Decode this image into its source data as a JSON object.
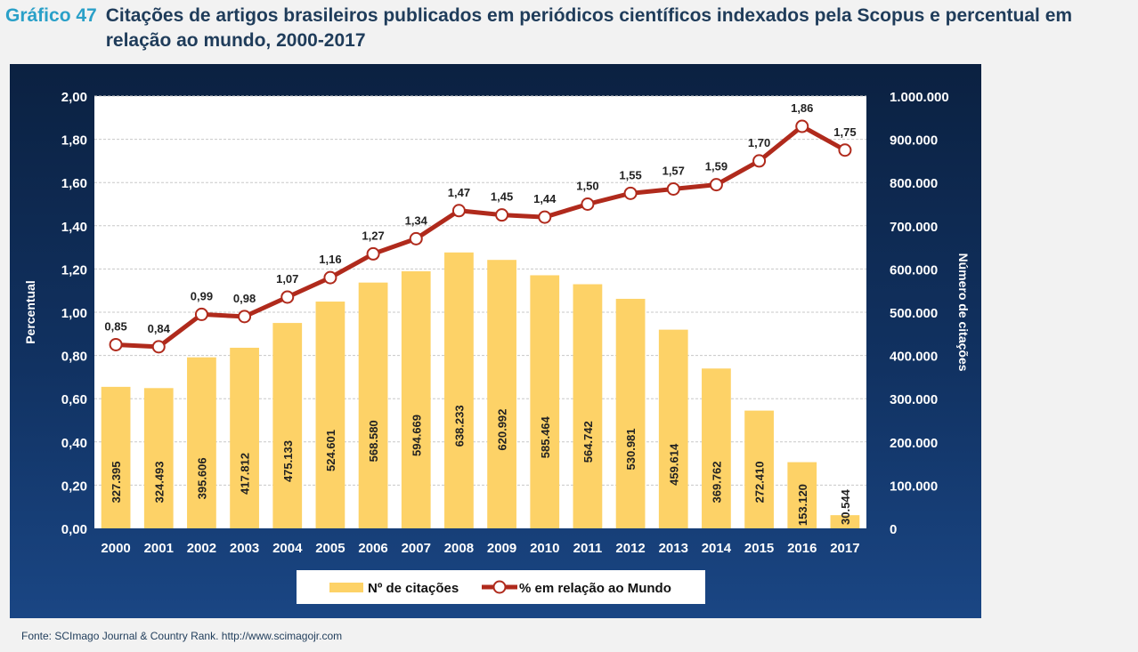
{
  "header": {
    "label": "Gráfico 47",
    "title": "Citações de artigos brasileiros publicados em periódicos científicos indexados pela Scopus e percentual em relação ao mundo, 2000-2017"
  },
  "source": "Fonte: SCImago Journal & Country Rank. http://www.scimagojr.com",
  "colors": {
    "bar": "#fdd267",
    "line": "#b02a1c",
    "panel": "#0f2c57",
    "plot_bg": "#ffffff"
  },
  "chart_data": {
    "type": "bar",
    "categories": [
      "2000",
      "2001",
      "2002",
      "2003",
      "2004",
      "2005",
      "2006",
      "2007",
      "2008",
      "2009",
      "2010",
      "2011",
      "2012",
      "2013",
      "2014",
      "2015",
      "2016",
      "2017"
    ],
    "series": [
      {
        "name": "Nº de citações",
        "type": "bar",
        "axis": "right",
        "values": [
          327395,
          324493,
          395606,
          417812,
          475133,
          524601,
          568580,
          594669,
          638233,
          620992,
          585464,
          564742,
          530981,
          459614,
          369762,
          272410,
          153120,
          30544
        ],
        "labels": [
          "327.395",
          "324.493",
          "395.606",
          "417.812",
          "475.133",
          "524.601",
          "568.580",
          "594.669",
          "638.233",
          "620.992",
          "585.464",
          "564.742",
          "530.981",
          "459.614",
          "369.762",
          "272.410",
          "153.120",
          "30.544"
        ]
      },
      {
        "name": "% em relação ao Mundo",
        "type": "line",
        "axis": "left",
        "values": [
          0.85,
          0.84,
          0.99,
          0.98,
          1.07,
          1.16,
          1.27,
          1.34,
          1.47,
          1.45,
          1.44,
          1.5,
          1.55,
          1.57,
          1.59,
          1.7,
          1.86,
          1.75
        ],
        "labels": [
          "0,85",
          "0,84",
          "0,99",
          "0,98",
          "1,07",
          "1,16",
          "1,27",
          "1,34",
          "1,47",
          "1,45",
          "1,44",
          "1,50",
          "1,55",
          "1,57",
          "1,59",
          "1,70",
          "1,86",
          "1,75"
        ]
      }
    ],
    "ylabel": "Percentual",
    "y2label": "Número de citações",
    "ylim": [
      0,
      2
    ],
    "y2lim": [
      0,
      1000000
    ],
    "yticks": [
      "0,00",
      "0,20",
      "0,40",
      "0,60",
      "0,80",
      "1,00",
      "1,20",
      "1,40",
      "1,60",
      "1,80",
      "2,00"
    ],
    "y2ticks": [
      "0",
      "100.000",
      "200.000",
      "300.000",
      "400.000",
      "500.000",
      "600.000",
      "700.000",
      "800.000",
      "900.000",
      "1.000.000"
    ],
    "grid": true,
    "legend_position": "bottom"
  }
}
